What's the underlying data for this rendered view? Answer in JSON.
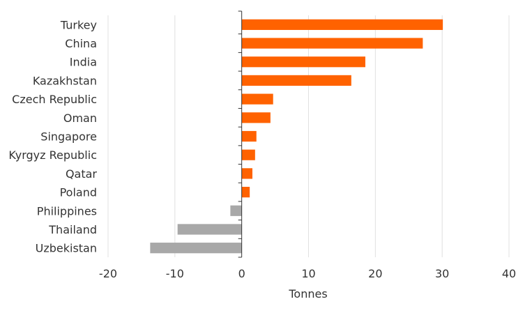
{
  "chart_data": {
    "type": "bar",
    "orientation": "horizontal",
    "categories": [
      "Turkey",
      "China",
      "India",
      "Kazakhstan",
      "Czech Republic",
      "Oman",
      "Singapore",
      "Kyrgyz Republic",
      "Qatar",
      "Poland",
      "Philippines",
      "Thailand",
      "Uzbekistan"
    ],
    "values": [
      30.1,
      27.1,
      18.5,
      16.4,
      4.7,
      4.3,
      2.2,
      2.0,
      1.6,
      1.2,
      -1.7,
      -9.6,
      -13.7
    ],
    "xlabel": "Tonnes",
    "ylabel": "",
    "title": "",
    "xlim": [
      -20,
      40
    ],
    "xticks": [
      -20,
      -10,
      0,
      10,
      20,
      30,
      40
    ],
    "grid": "vertical",
    "colors": {
      "positive": "#FF6200",
      "negative": "#A8A8A8",
      "grid": "#E0E0E0",
      "axis": "#333333"
    }
  }
}
